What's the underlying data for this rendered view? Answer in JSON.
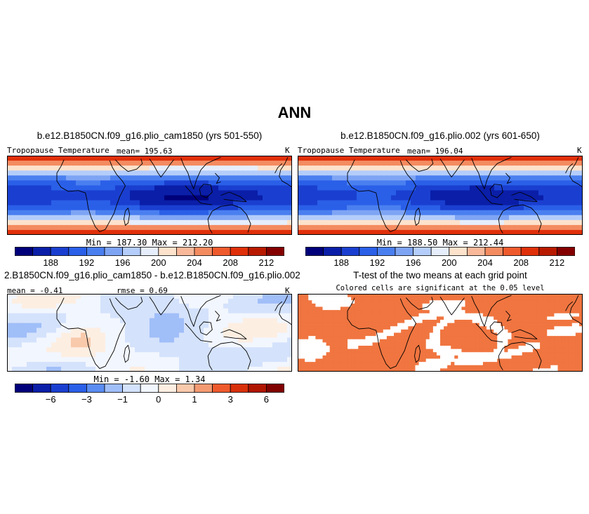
{
  "page_title": "ANN",
  "colors": {
    "main_palette": [
      "#00007a",
      "#0a1ea8",
      "#1a3fd0",
      "#2a5fe8",
      "#4a7ff0",
      "#7ea4f4",
      "#b4cdfa",
      "#e6eefc",
      "#fde2cc",
      "#f9b89a",
      "#f48b60",
      "#ef5a2c",
      "#e0300a",
      "#b81a00",
      "#840000"
    ],
    "diff_palette": [
      "#00007a",
      "#0a1ea8",
      "#1a3fd0",
      "#2a5fe8",
      "#5a8cf2",
      "#a0bef8",
      "#d4e2fc",
      "#f2f6fe",
      "#fdeee2",
      "#f9c9ab",
      "#f49a72",
      "#ef5a2c",
      "#d8300a",
      "#b01500",
      "#800000"
    ],
    "significance": "#f07540"
  },
  "panels": {
    "p1": {
      "title": "b.e12.B1850CN.f09_g16.plio_cam1850 (yrs 501-550)",
      "left_label": "Tropopause Temperature",
      "mean_label": "mean= 195.63",
      "unit": "K",
      "min_max": "Min = 187.30 Max = 212.20"
    },
    "p2": {
      "title": "b.e12.B1850CN.f09_g16.plio.002 (yrs 601-650)",
      "left_label": "Tropopause Temperature",
      "mean_label": "mean= 196.04",
      "unit": "K",
      "min_max": "Min = 188.50 Max = 212.44"
    },
    "p3": {
      "title": "2.B1850CN.f09_g16.plio_cam1850 - b.e12.B1850CN.f09_g16.plio.002",
      "mean_label": "mean = -0.41",
      "rmse_label": "rmse = 0.69",
      "unit": "K",
      "min_max": "Min = -1.60 Max = 1.34"
    },
    "p4": {
      "title": "T-test of the two means at each grid point",
      "subtitle": "Colored cells are significant at the 0.05 level"
    }
  },
  "chart_data": [
    {
      "type": "heatmap",
      "title": "b.e12.B1850CN.f09_g16.plio_cam1850 (yrs 501-550)",
      "variable": "Tropopause Temperature",
      "unit": "K",
      "mean": 195.63,
      "min": 187.3,
      "max": 212.2,
      "colorbar_ticks": [
        188,
        192,
        196,
        200,
        204,
        208,
        212
      ]
    },
    {
      "type": "heatmap",
      "title": "b.e12.B1850CN.f09_g16.plio.002 (yrs 601-650)",
      "variable": "Tropopause Temperature",
      "unit": "K",
      "mean": 196.04,
      "min": 188.5,
      "max": 212.44,
      "colorbar_ticks": [
        188,
        192,
        196,
        200,
        204,
        208,
        212
      ]
    },
    {
      "type": "heatmap",
      "title": "2.B1850CN.f09_g16.plio_cam1850 - b.e12.B1850CN.f09_g16.plio.002",
      "unit": "K",
      "mean": -0.41,
      "rmse": 0.69,
      "min": -1.6,
      "max": 1.34,
      "colorbar_ticks": [
        -6,
        -3,
        -1,
        0,
        1,
        3,
        6
      ]
    },
    {
      "type": "heatmap",
      "title": "T-test of the two means at each grid point",
      "subtitle": "Colored cells are significant at the 0.05 level"
    }
  ]
}
